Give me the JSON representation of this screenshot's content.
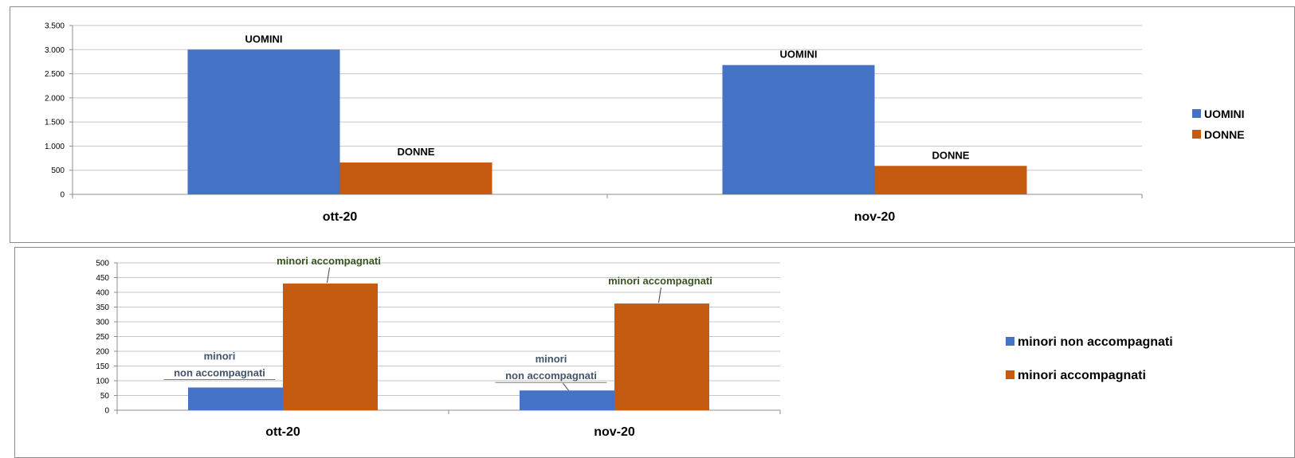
{
  "chart_data": [
    {
      "type": "bar",
      "categories": [
        "ott-20",
        "nov-20"
      ],
      "series": [
        {
          "name": "UOMINI",
          "values": [
            3000,
            2680
          ],
          "color": "#4472C4",
          "label": "UOMINI"
        },
        {
          "name": "DONNE",
          "values": [
            660,
            590
          ],
          "color": "#C55A11",
          "label": "DONNE"
        }
      ],
      "ylim": [
        0,
        3500
      ],
      "yticks": [
        0,
        500,
        1000,
        1500,
        2000,
        2500,
        3000,
        3500
      ],
      "ytick_labels": [
        "0",
        "500",
        "1.000",
        "1.500",
        "2.000",
        "2.500",
        "3.000",
        "3.500"
      ],
      "grid": true,
      "legend": "right"
    },
    {
      "type": "bar",
      "categories": [
        "ott-20",
        "nov-20"
      ],
      "series": [
        {
          "name": "minori non accompagnati",
          "values": [
            77,
            67
          ],
          "color": "#4472C4",
          "label_lines": [
            "minori",
            "non accompagnati"
          ]
        },
        {
          "name": "minori accompagnati",
          "values": [
            430,
            362
          ],
          "color": "#C55A11",
          "label_lines": [
            "minori accompagnati"
          ]
        }
      ],
      "ylim": [
        0,
        500
      ],
      "yticks": [
        0,
        50,
        100,
        150,
        200,
        250,
        300,
        350,
        400,
        450,
        500
      ],
      "ytick_labels": [
        "0",
        "50",
        "100",
        "150",
        "200",
        "250",
        "300",
        "350",
        "400",
        "450",
        "500"
      ],
      "grid": true,
      "legend": "right"
    }
  ]
}
